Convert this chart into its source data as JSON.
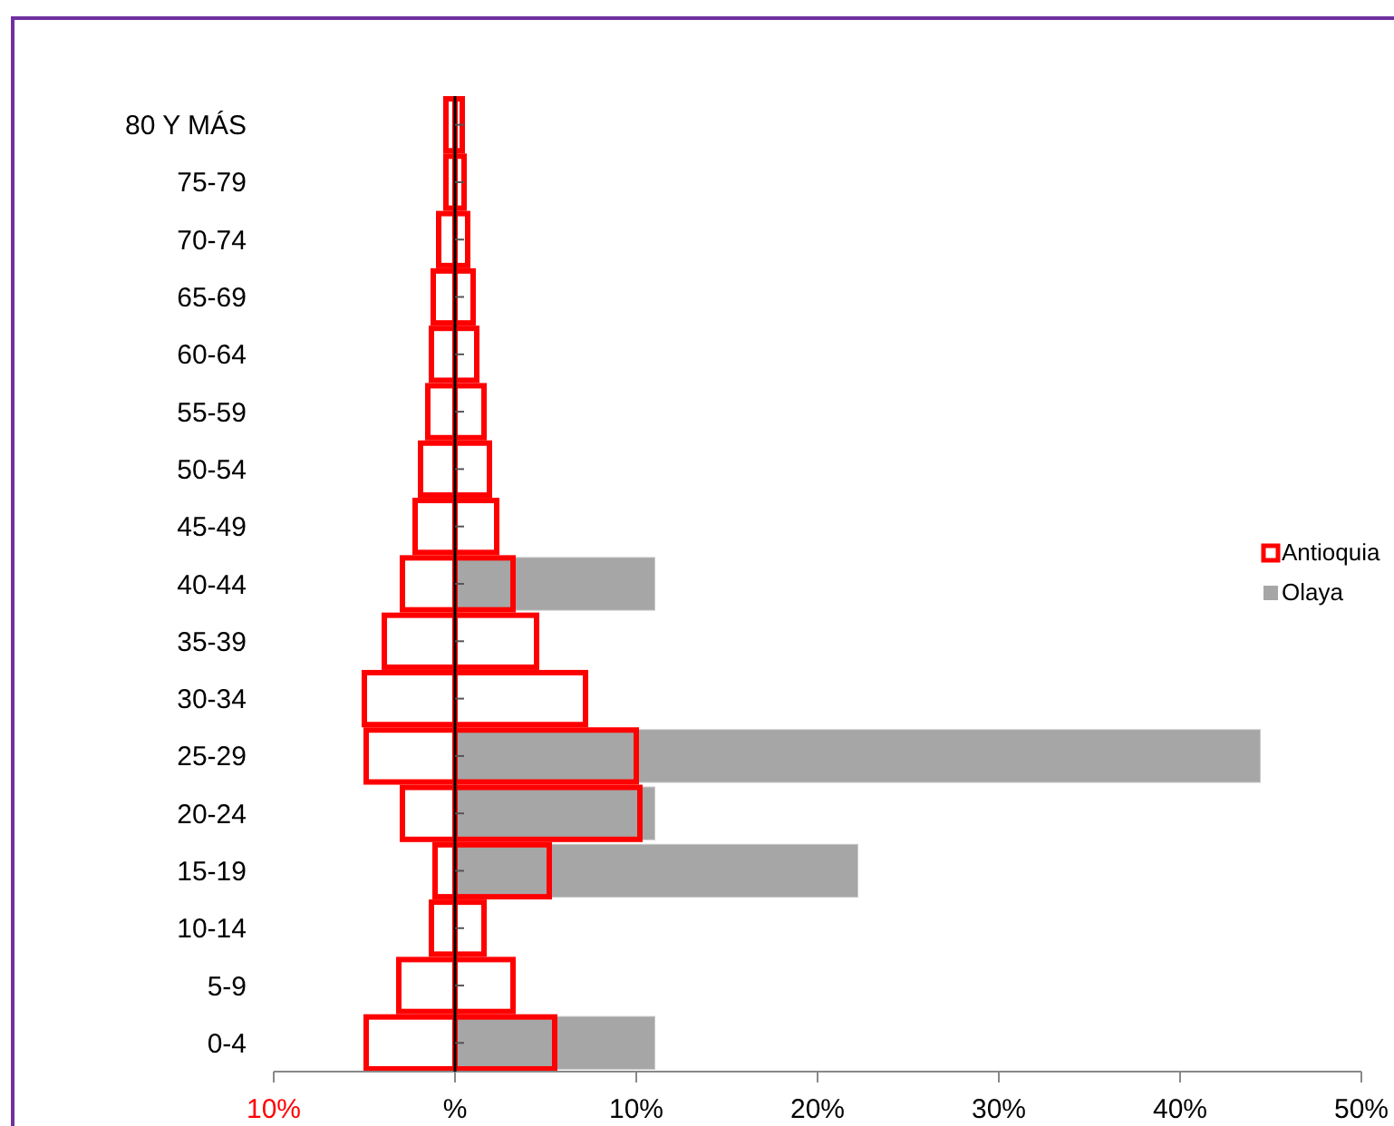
{
  "chart_data": {
    "type": "bar",
    "orientation": "horizontal",
    "categories": [
      "80 Y MÁS",
      "75-79",
      "70-74",
      "65-69",
      "60-64",
      "55-59",
      "50-54",
      "45-49",
      "40-44",
      "35-39",
      "30-34",
      "25-29",
      "20-24",
      "15-19",
      "10-14",
      "5-9",
      "0-4"
    ],
    "series": [
      {
        "name": "Olaya",
        "color": "#a6a6a6",
        "values": [
          null,
          null,
          null,
          null,
          null,
          null,
          null,
          null,
          11.0,
          null,
          null,
          44.4,
          11.0,
          22.2,
          null,
          null,
          11.0
        ]
      },
      {
        "color": "#ff0000",
        "values": [
          -0.5,
          -0.5,
          -0.9,
          -1.2,
          -1.3,
          -1.5,
          -1.9,
          -2.2,
          -2.9,
          -3.9,
          -5.0,
          -4.9,
          -2.9,
          -1.1,
          -1.3,
          -3.1,
          -4.9
        ]
      },
      {
        "name": "Antioquia",
        "color": "#ff0000",
        "values": [
          0.4,
          0.5,
          0.7,
          1.0,
          1.2,
          1.6,
          1.9,
          2.3,
          3.2,
          4.5,
          7.2,
          10.0,
          10.2,
          5.2,
          1.6,
          3.2,
          5.5
        ]
      }
    ],
    "xlim": [
      -10,
      50
    ],
    "xticks": [
      {
        "value": -10,
        "label": "10%"
      },
      {
        "value": 0,
        "label": "%"
      },
      {
        "value": 10,
        "label": "10%"
      },
      {
        "value": 20,
        "label": "20%"
      },
      {
        "value": 30,
        "label": "30%"
      },
      {
        "value": 40,
        "label": "40%"
      },
      {
        "value": 50,
        "label": "50%"
      }
    ],
    "legend": "right"
  }
}
